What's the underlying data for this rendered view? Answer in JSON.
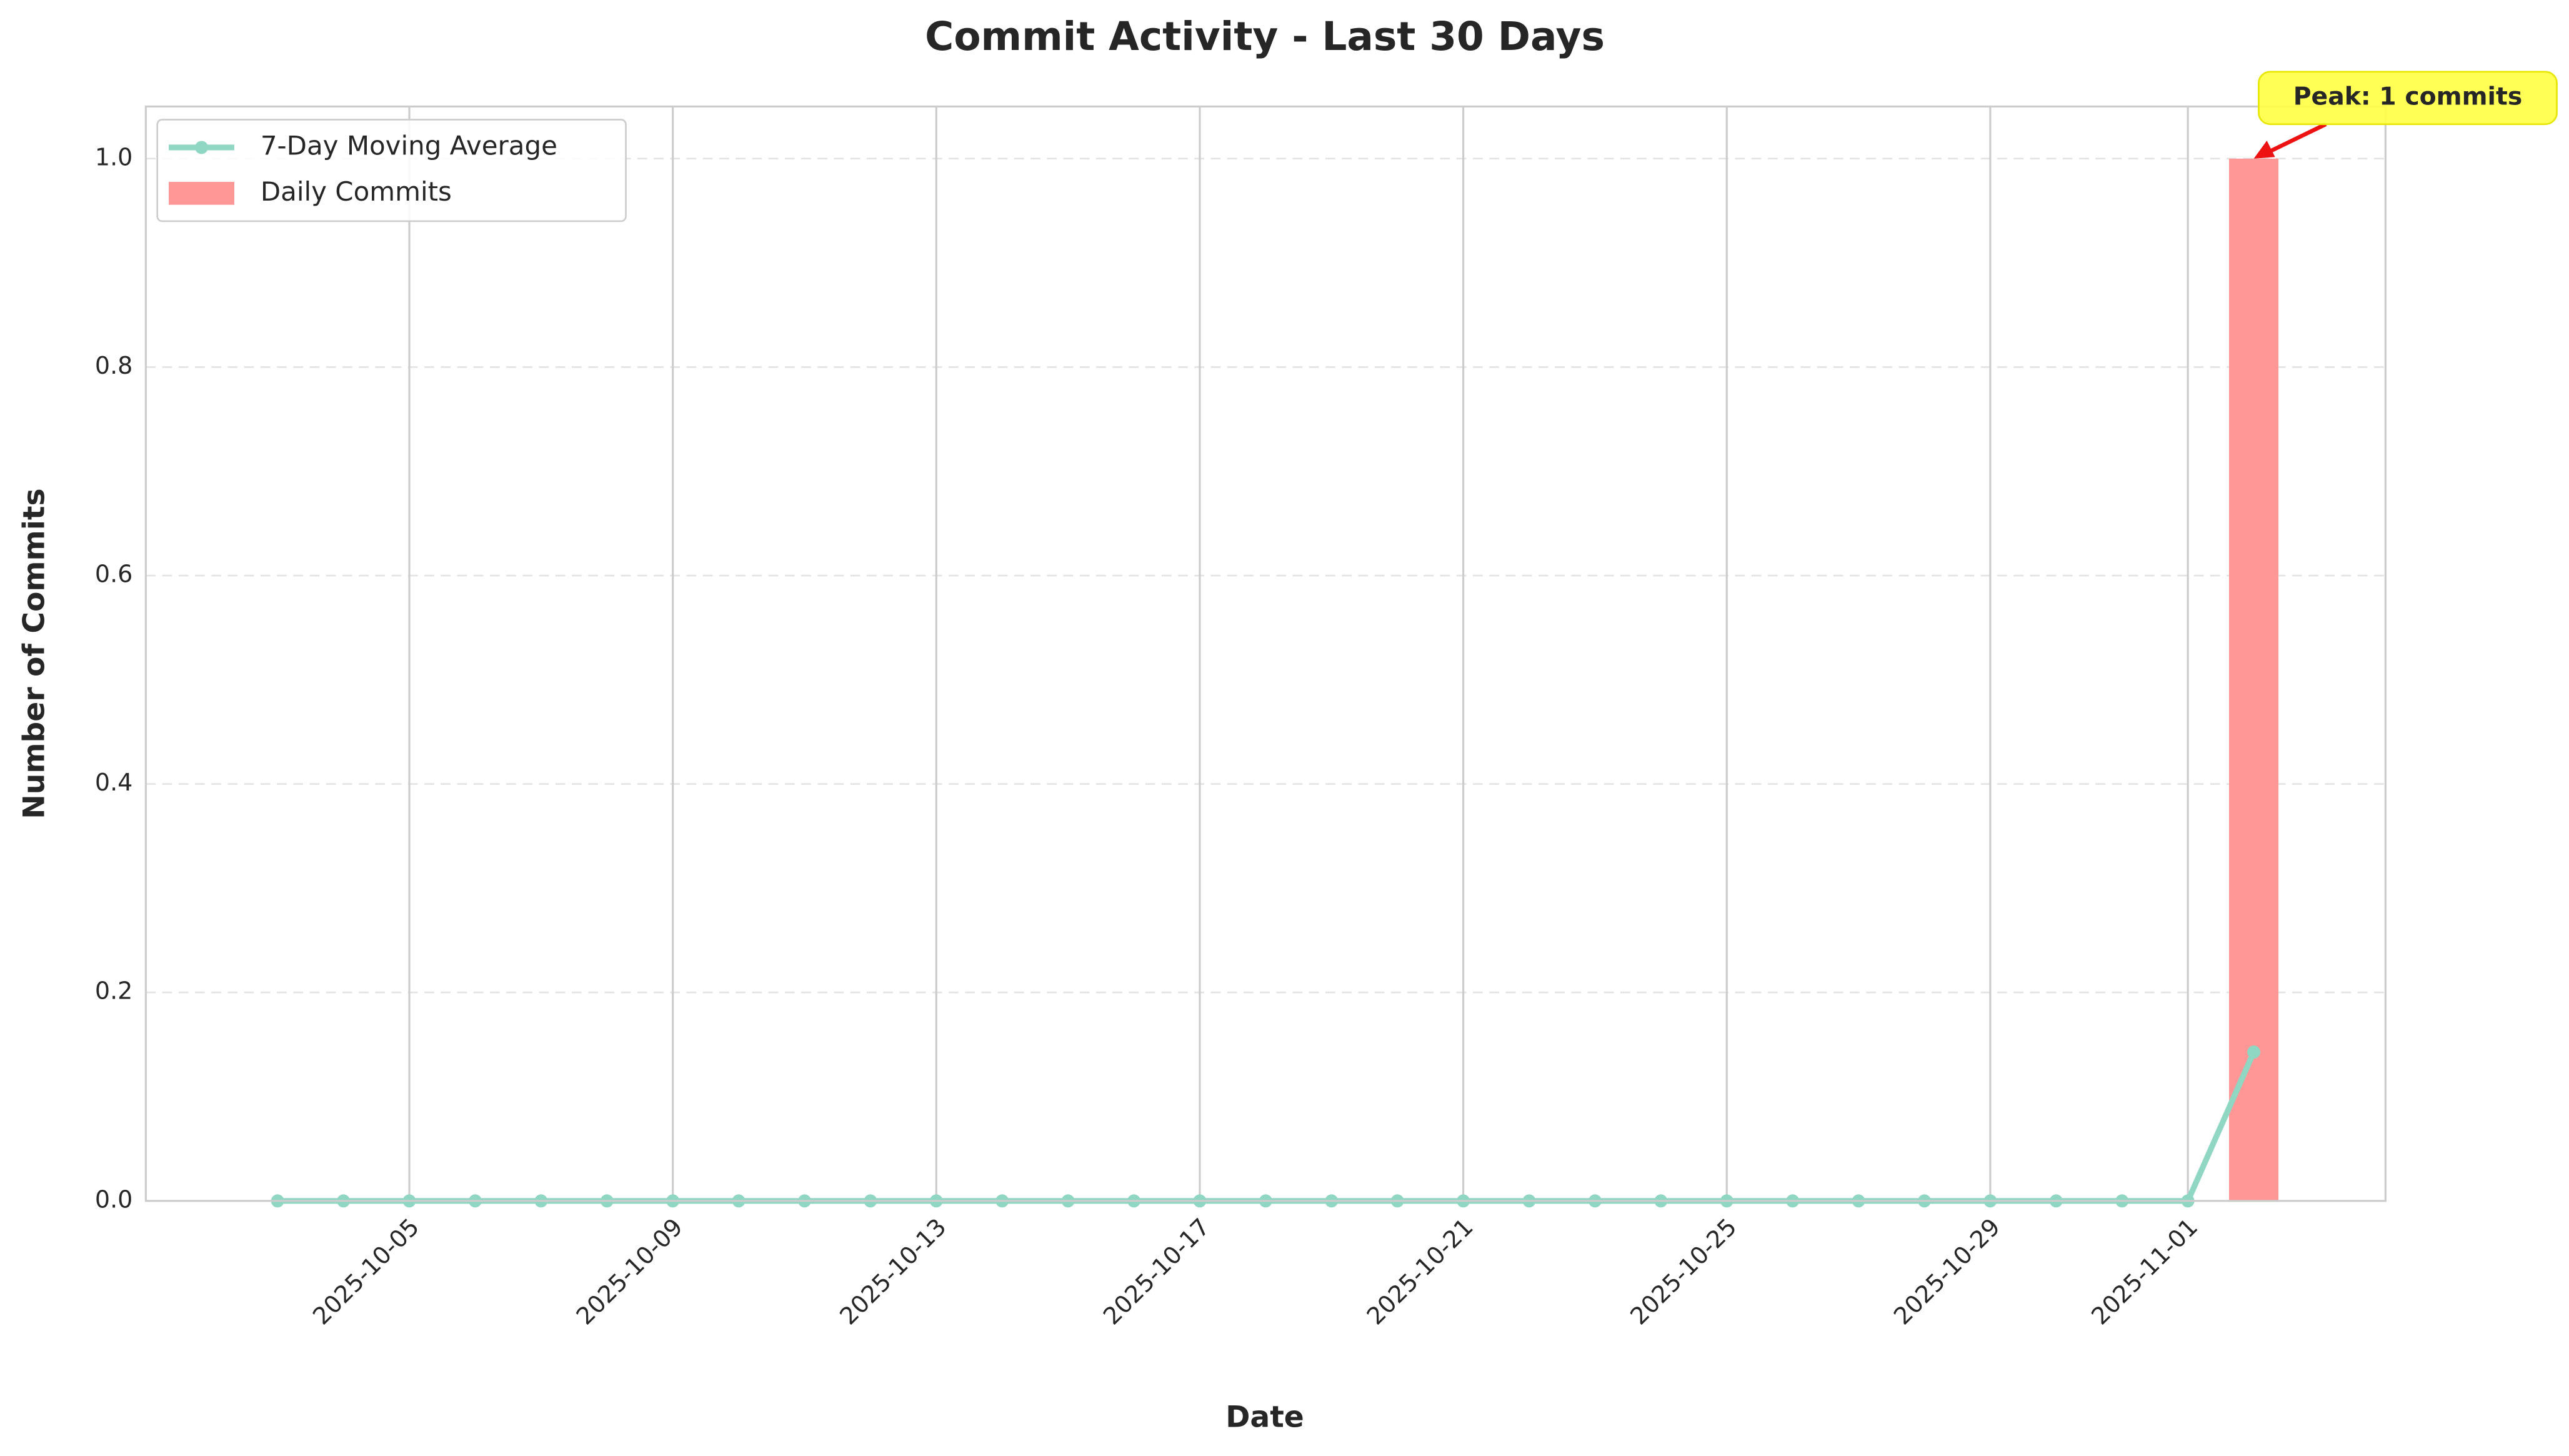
{
  "chart_data": {
    "type": "bar",
    "title": "Commit Activity - Last 30 Days",
    "x_label": "Date",
    "y_label": "Number of Commits",
    "x": [
      "2025-10-03",
      "2025-10-04",
      "2025-10-05",
      "2025-10-06",
      "2025-10-07",
      "2025-10-08",
      "2025-10-09",
      "2025-10-10",
      "2025-10-11",
      "2025-10-12",
      "2025-10-13",
      "2025-10-14",
      "2025-10-15",
      "2025-10-16",
      "2025-10-17",
      "2025-10-18",
      "2025-10-19",
      "2025-10-20",
      "2025-10-21",
      "2025-10-22",
      "2025-10-23",
      "2025-10-24",
      "2025-10-25",
      "2025-10-26",
      "2025-10-27",
      "2025-10-28",
      "2025-10-29",
      "2025-10-30",
      "2025-10-31",
      "2025-11-01",
      "2025-11-02"
    ],
    "series": [
      {
        "name": "7-Day Moving Average",
        "type": "line",
        "color": "#8fd6c3",
        "values": [
          0,
          0,
          0,
          0,
          0,
          0,
          0,
          0,
          0,
          0,
          0,
          0,
          0,
          0,
          0,
          0,
          0,
          0,
          0,
          0,
          0,
          0,
          0,
          0,
          0,
          0,
          0,
          0,
          0,
          0,
          0.142857
        ]
      },
      {
        "name": "Daily Commits",
        "type": "bar",
        "color": "#ff9797",
        "values": [
          0,
          0,
          0,
          0,
          0,
          0,
          0,
          0,
          0,
          0,
          0,
          0,
          0,
          0,
          0,
          0,
          0,
          0,
          0,
          0,
          0,
          0,
          0,
          0,
          0,
          0,
          0,
          0,
          0,
          0,
          1
        ]
      }
    ],
    "xlim": [
      "2025-10-01",
      "2025-11-04"
    ],
    "xticks": [
      "2025-10-05",
      "2025-10-09",
      "2025-10-13",
      "2025-10-17",
      "2025-10-21",
      "2025-10-25",
      "2025-10-29",
      "2025-11-01"
    ],
    "ylim": [
      0,
      1.05
    ],
    "yticks": [
      {
        "value": 0,
        "label": "0.0"
      },
      {
        "value": 0.2,
        "label": "0.2"
      },
      {
        "value": 0.4,
        "label": "0.4"
      },
      {
        "value": 0.6,
        "label": "0.6"
      },
      {
        "value": 0.8,
        "label": "0.8"
      },
      {
        "value": 1,
        "label": "1.0"
      }
    ],
    "grid": true,
    "legend": "upper left",
    "annotations": [
      {
        "text": "Peak: 1 commits",
        "x": "2025-11-02",
        "y": 1
      }
    ]
  }
}
